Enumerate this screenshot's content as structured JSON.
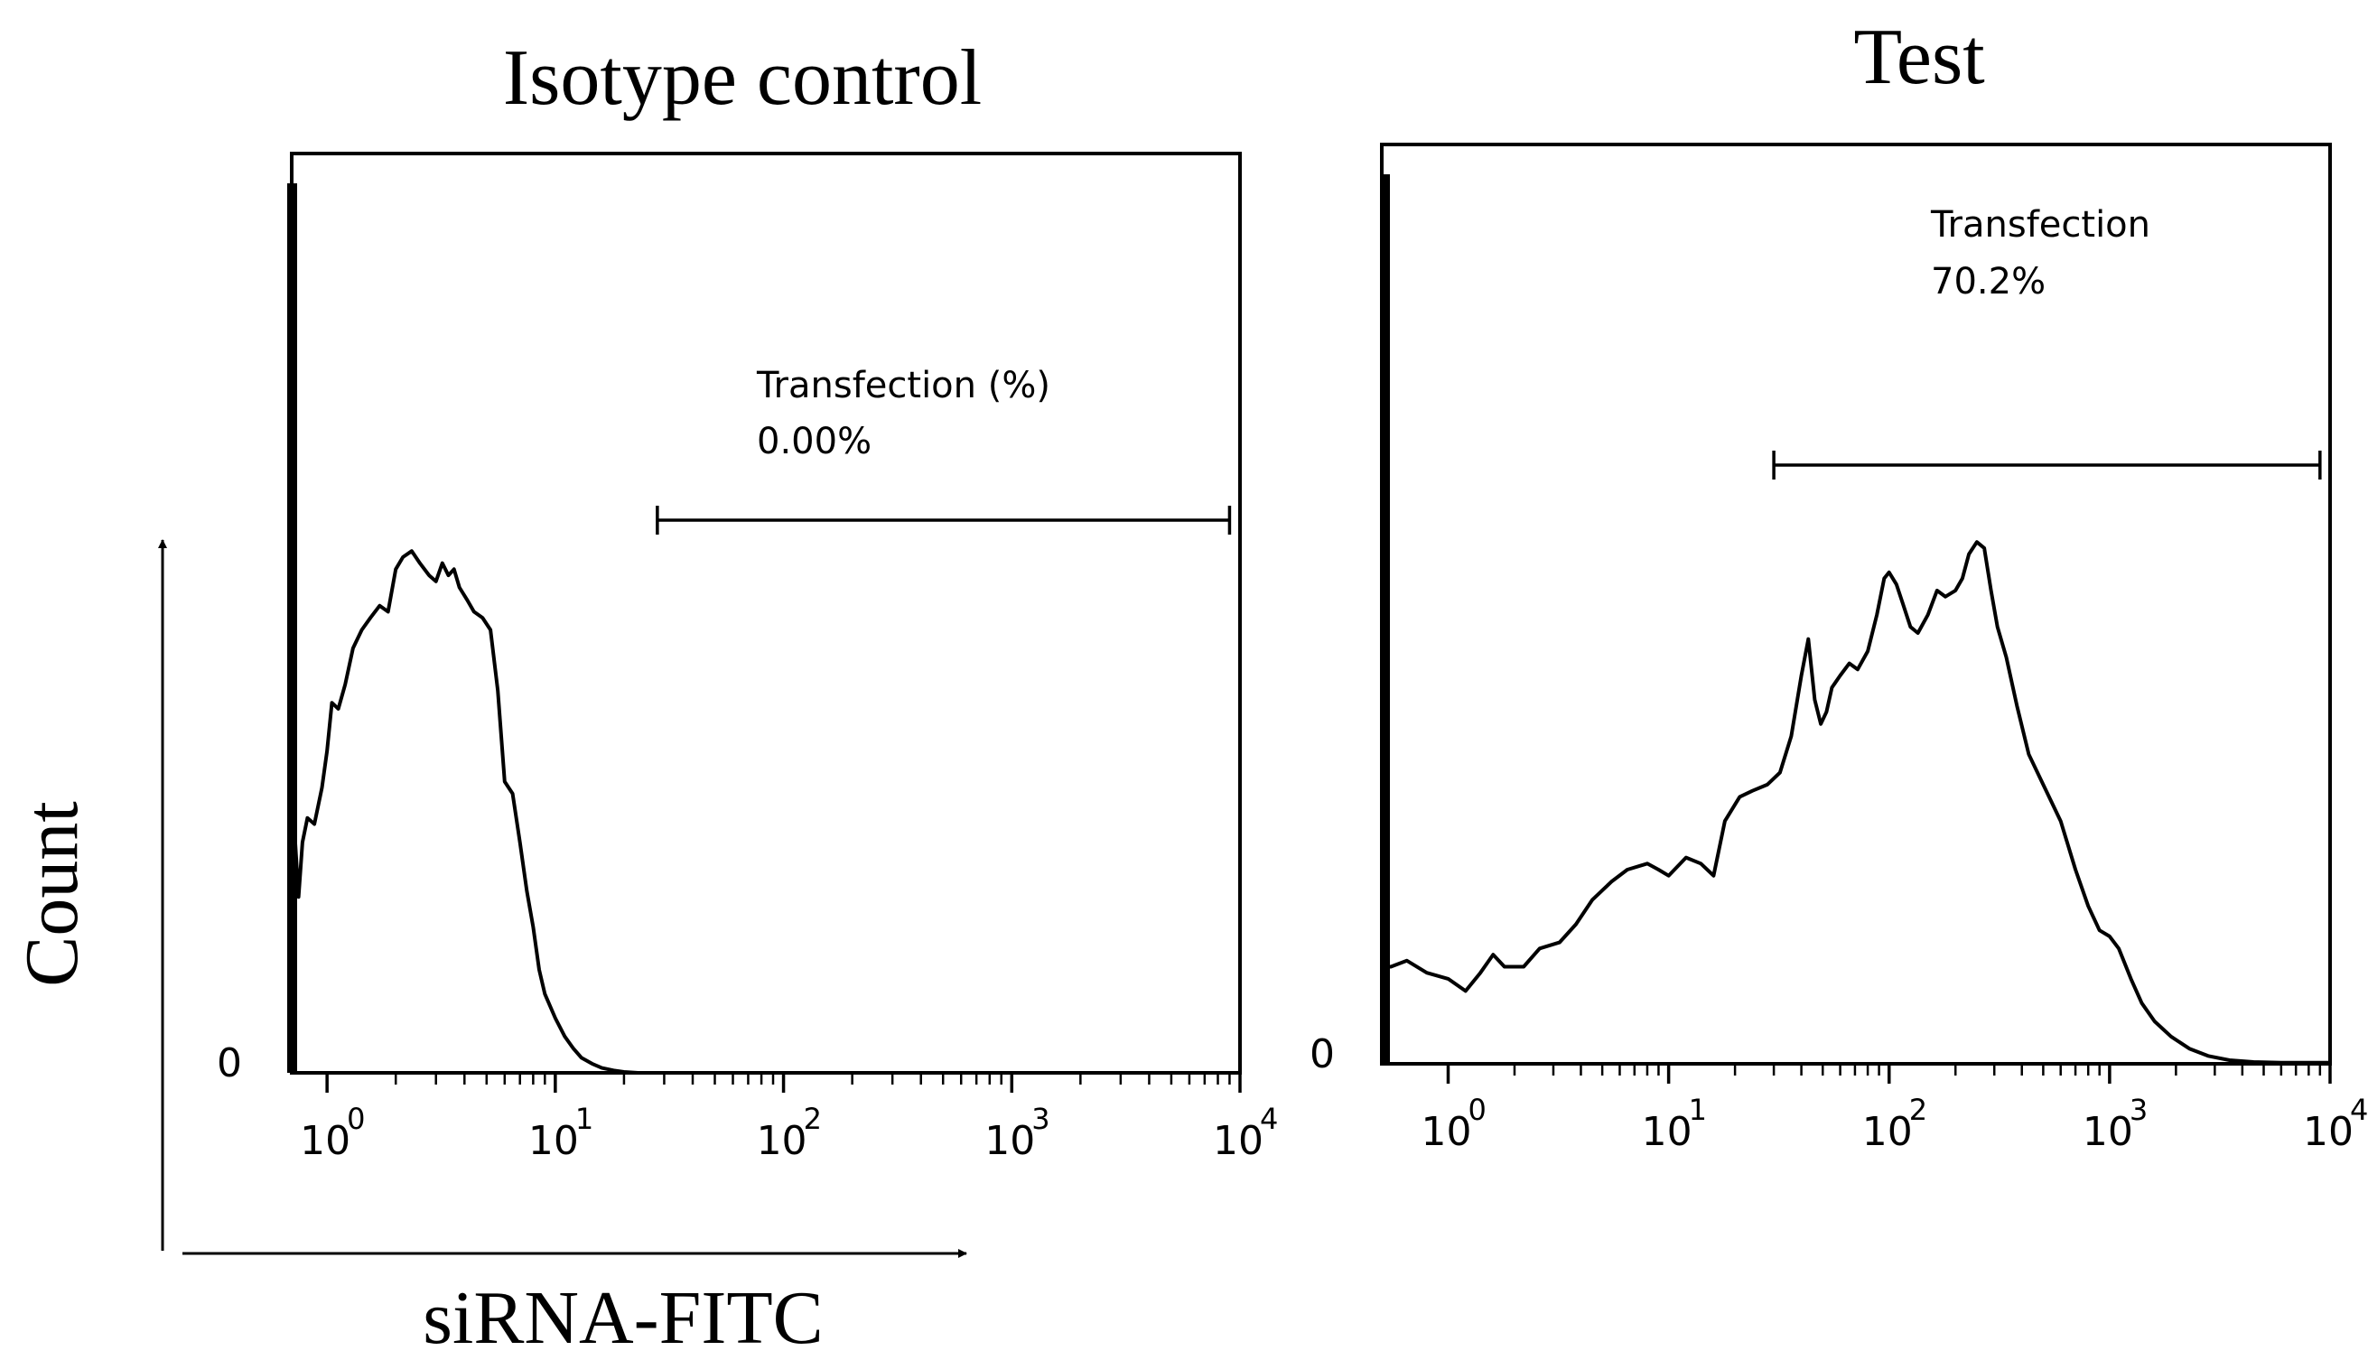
{
  "figure": {
    "count_label": "Count",
    "x_label": "siRNA-FITC"
  },
  "chart_data": [
    {
      "type": "line",
      "title": "Isotype control",
      "xlabel": "",
      "ylabel": "",
      "x_scale": "log",
      "xlim": [
        0.7,
        10000
      ],
      "ylim": [
        0,
        1
      ],
      "x_ticks": [
        {
          "base": "10",
          "exp": "0"
        },
        {
          "base": "10",
          "exp": "1"
        },
        {
          "base": "10",
          "exp": "2"
        },
        {
          "base": "10",
          "exp": "3"
        },
        {
          "base": "10",
          "exp": "4"
        }
      ],
      "y_tick_label": "0",
      "gate": {
        "label": "Transfection (%)",
        "value": "0.00%",
        "x_start": 28,
        "x_end": 9000
      },
      "x": [
        0.7,
        0.72,
        0.75,
        0.78,
        0.82,
        0.88,
        0.95,
        1.0,
        1.05,
        1.12,
        1.2,
        1.3,
        1.42,
        1.55,
        1.7,
        1.85,
        2.0,
        2.15,
        2.35,
        2.55,
        2.8,
        3.0,
        3.2,
        3.4,
        3.6,
        3.8,
        4.1,
        4.4,
        4.8,
        5.2,
        5.6,
        6.0,
        6.5,
        7.0,
        7.5,
        8.0,
        8.5,
        9.0,
        10.0,
        11.0,
        12.0,
        13.0,
        14.5,
        16.0,
        18.0,
        20.0,
        23.0,
        26.0,
        30.0,
        40.0,
        60.0,
        100.0,
        1000.0,
        9500.0
      ],
      "y": [
        0.27,
        0.4,
        0.29,
        0.38,
        0.42,
        0.41,
        0.47,
        0.53,
        0.61,
        0.6,
        0.64,
        0.7,
        0.73,
        0.75,
        0.77,
        0.76,
        0.83,
        0.85,
        0.86,
        0.84,
        0.82,
        0.81,
        0.84,
        0.82,
        0.83,
        0.8,
        0.78,
        0.76,
        0.75,
        0.73,
        0.63,
        0.48,
        0.46,
        0.38,
        0.3,
        0.24,
        0.17,
        0.13,
        0.09,
        0.06,
        0.04,
        0.025,
        0.015,
        0.008,
        0.004,
        0.0015,
        0,
        0,
        0,
        0,
        0,
        0,
        0,
        0
      ]
    },
    {
      "type": "line",
      "title": "Test",
      "xlabel": "",
      "ylabel": "",
      "x_scale": "log",
      "xlim": [
        0.5,
        10000
      ],
      "ylim": [
        0,
        1
      ],
      "x_ticks": [
        {
          "base": "10",
          "exp": "0"
        },
        {
          "base": "10",
          "exp": "1"
        },
        {
          "base": "10",
          "exp": "2"
        },
        {
          "base": "10",
          "exp": "3"
        },
        {
          "base": "10",
          "exp": "4"
        }
      ],
      "y_tick_label": "0",
      "gate": {
        "label": "Transfection",
        "value": "70.2%",
        "x_start": 30,
        "x_end": 9000
      },
      "x": [
        0.5,
        0.55,
        0.65,
        0.8,
        1.0,
        1.2,
        1.4,
        1.6,
        1.8,
        2.2,
        2.6,
        3.2,
        3.8,
        4.5,
        5.5,
        6.5,
        8.0,
        9.0,
        10.0,
        12.0,
        14.0,
        16.0,
        18.0,
        21.0,
        24.0,
        28.0,
        32.0,
        36.0,
        40.0,
        43.0,
        46.0,
        49.0,
        52.0,
        55.0,
        60.0,
        66.0,
        72.0,
        80.0,
        88.0,
        95.0,
        100.0,
        108.0,
        115.0,
        125.0,
        135.0,
        150.0,
        165.0,
        180.0,
        200.0,
        215.0,
        230.0,
        250.0,
        270.0,
        290.0,
        310.0,
        340.0,
        380.0,
        430.0,
        500.0,
        600.0,
        700.0,
        800.0,
        900.0,
        1000.0,
        1100.0,
        1250.0,
        1400.0,
        1600.0,
        1900.0,
        2300.0,
        2800.0,
        3500.0,
        4500.0,
        6000.0,
        8000.0,
        10000.0
      ],
      "y": [
        0.16,
        0.16,
        0.17,
        0.15,
        0.14,
        0.12,
        0.15,
        0.18,
        0.16,
        0.16,
        0.19,
        0.2,
        0.23,
        0.27,
        0.3,
        0.32,
        0.33,
        0.32,
        0.31,
        0.34,
        0.33,
        0.31,
        0.4,
        0.44,
        0.45,
        0.46,
        0.48,
        0.54,
        0.64,
        0.7,
        0.6,
        0.56,
        0.58,
        0.62,
        0.64,
        0.66,
        0.65,
        0.68,
        0.74,
        0.8,
        0.81,
        0.79,
        0.76,
        0.72,
        0.71,
        0.74,
        0.78,
        0.77,
        0.78,
        0.8,
        0.84,
        0.86,
        0.85,
        0.78,
        0.72,
        0.67,
        0.59,
        0.51,
        0.46,
        0.4,
        0.32,
        0.26,
        0.22,
        0.21,
        0.19,
        0.14,
        0.1,
        0.07,
        0.045,
        0.025,
        0.013,
        0.006,
        0.003,
        0.002,
        0.002,
        0.002
      ]
    }
  ]
}
